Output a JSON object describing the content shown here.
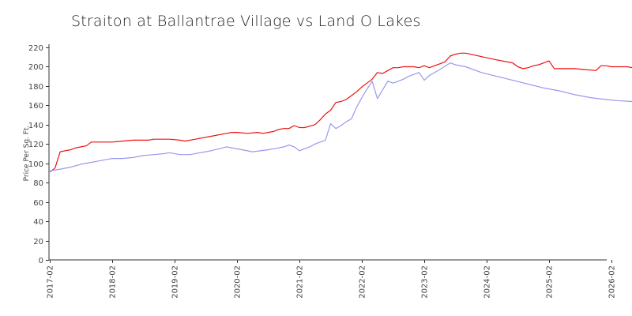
{
  "chart_data": {
    "type": "line",
    "title": "Straiton at Ballantrae Village vs Land O Lakes",
    "xlabel": "",
    "ylabel": "Price Per Sq. Ft.",
    "ylim": [
      0,
      220
    ],
    "yticks": [
      0,
      20,
      40,
      60,
      80,
      100,
      120,
      140,
      160,
      180,
      200,
      220
    ],
    "xticks": [
      "2017-02",
      "2018-02",
      "2019-02",
      "2020-02",
      "2021-02",
      "2022-02",
      "2023-02",
      "2024-02",
      "2025-02",
      "2026-02"
    ],
    "grid": false,
    "legend": "none",
    "series": [
      {
        "color": "#ee1111",
        "points": [
          [
            "2017-02",
            91
          ],
          [
            "2017-03",
            95
          ],
          [
            "2017-04",
            112
          ],
          [
            "2017-05",
            113
          ],
          [
            "2017-06",
            114
          ],
          [
            "2017-07",
            116
          ],
          [
            "2017-08",
            117
          ],
          [
            "2017-09",
            118
          ],
          [
            "2017-10",
            122
          ],
          [
            "2017-11",
            122
          ],
          [
            "2018-02",
            122
          ],
          [
            "2018-04",
            123
          ],
          [
            "2018-06",
            124
          ],
          [
            "2018-09",
            124
          ],
          [
            "2018-10",
            125
          ],
          [
            "2019-01",
            125
          ],
          [
            "2019-03",
            124
          ],
          [
            "2019-04",
            123
          ],
          [
            "2019-06",
            125
          ],
          [
            "2019-09",
            128
          ],
          [
            "2019-12",
            131
          ],
          [
            "2020-01",
            132
          ],
          [
            "2020-02",
            132
          ],
          [
            "2020-04",
            131
          ],
          [
            "2020-06",
            132
          ],
          [
            "2020-07",
            131
          ],
          [
            "2020-08",
            132
          ],
          [
            "2020-09",
            133
          ],
          [
            "2020-10",
            135
          ],
          [
            "2020-11",
            136
          ],
          [
            "2020-12",
            136
          ],
          [
            "2021-01",
            139
          ],
          [
            "2021-02",
            137
          ],
          [
            "2021-03",
            137
          ],
          [
            "2021-05",
            140
          ],
          [
            "2021-06",
            145
          ],
          [
            "2021-07",
            151
          ],
          [
            "2021-08",
            155
          ],
          [
            "2021-09",
            163
          ],
          [
            "2021-10",
            164
          ],
          [
            "2021-11",
            166
          ],
          [
            "2021-12",
            170
          ],
          [
            "2022-01",
            174
          ],
          [
            "2022-02",
            179
          ],
          [
            "2022-03",
            183
          ],
          [
            "2022-04",
            187
          ],
          [
            "2022-05",
            194
          ],
          [
            "2022-06",
            193
          ],
          [
            "2022-07",
            196
          ],
          [
            "2022-08",
            199
          ],
          [
            "2022-09",
            199
          ],
          [
            "2022-10",
            200
          ],
          [
            "2022-11",
            200
          ],
          [
            "2022-12",
            200
          ],
          [
            "2023-01",
            199
          ],
          [
            "2023-02",
            201
          ],
          [
            "2023-03",
            199
          ],
          [
            "2023-04",
            201
          ],
          [
            "2023-05",
            203
          ],
          [
            "2023-06",
            205
          ],
          [
            "2023-07",
            211
          ],
          [
            "2023-08",
            213
          ],
          [
            "2023-09",
            214
          ],
          [
            "2023-10",
            214
          ],
          [
            "2024-04",
            207
          ],
          [
            "2024-07",
            204
          ],
          [
            "2024-08",
            200
          ],
          [
            "2024-09",
            198
          ],
          [
            "2024-10",
            199
          ],
          [
            "2024-11",
            201
          ],
          [
            "2024-12",
            202
          ],
          [
            "2025-01",
            204
          ],
          [
            "2025-02",
            206
          ],
          [
            "2025-03",
            198
          ],
          [
            "2025-07",
            198
          ],
          [
            "2025-09",
            197
          ],
          [
            "2025-11",
            196
          ],
          [
            "2025-12",
            201
          ],
          [
            "2026-01",
            201
          ],
          [
            "2026-02",
            200
          ],
          [
            "2026-05",
            200
          ],
          [
            "2026-06",
            199
          ]
        ]
      },
      {
        "color": "#9999ee",
        "points": [
          [
            "2017-02",
            92
          ],
          [
            "2017-04",
            94
          ],
          [
            "2017-06",
            96
          ],
          [
            "2017-08",
            99
          ],
          [
            "2017-10",
            101
          ],
          [
            "2018-01",
            104
          ],
          [
            "2018-02",
            105
          ],
          [
            "2018-04",
            105
          ],
          [
            "2018-06",
            106
          ],
          [
            "2018-08",
            108
          ],
          [
            "2018-10",
            109
          ],
          [
            "2018-12",
            110
          ],
          [
            "2019-01",
            111
          ],
          [
            "2019-03",
            109
          ],
          [
            "2019-05",
            109
          ],
          [
            "2019-09",
            113
          ],
          [
            "2019-12",
            117
          ],
          [
            "2020-02",
            115
          ],
          [
            "2020-05",
            112
          ],
          [
            "2020-08",
            114
          ],
          [
            "2020-10",
            116
          ],
          [
            "2020-11",
            117
          ],
          [
            "2020-12",
            119
          ],
          [
            "2021-01",
            117
          ],
          [
            "2021-02",
            113
          ],
          [
            "2021-04",
            117
          ],
          [
            "2021-05",
            120
          ],
          [
            "2021-07",
            124
          ],
          [
            "2021-08",
            141
          ],
          [
            "2021-09",
            136
          ],
          [
            "2021-10",
            139
          ],
          [
            "2021-11",
            143
          ],
          [
            "2021-12",
            146
          ],
          [
            "2022-01",
            158
          ],
          [
            "2022-02",
            168
          ],
          [
            "2022-03",
            177
          ],
          [
            "2022-04",
            185
          ],
          [
            "2022-05",
            167
          ],
          [
            "2022-06",
            176
          ],
          [
            "2022-07",
            185
          ],
          [
            "2022-08",
            183
          ],
          [
            "2022-09",
            185
          ],
          [
            "2022-10",
            187
          ],
          [
            "2022-11",
            190
          ],
          [
            "2022-12",
            192
          ],
          [
            "2023-01",
            194
          ],
          [
            "2023-02",
            186
          ],
          [
            "2023-03",
            191
          ],
          [
            "2023-05",
            197
          ],
          [
            "2023-07",
            204
          ],
          [
            "2023-08",
            202
          ],
          [
            "2023-10",
            200
          ],
          [
            "2024-01",
            194
          ],
          [
            "2024-04",
            190
          ],
          [
            "2024-07",
            186
          ],
          [
            "2024-10",
            182
          ],
          [
            "2025-01",
            178
          ],
          [
            "2025-04",
            175
          ],
          [
            "2025-07",
            171
          ],
          [
            "2025-10",
            168
          ],
          [
            "2026-01",
            166
          ],
          [
            "2026-03",
            165
          ],
          [
            "2026-06",
            164
          ]
        ]
      }
    ]
  }
}
